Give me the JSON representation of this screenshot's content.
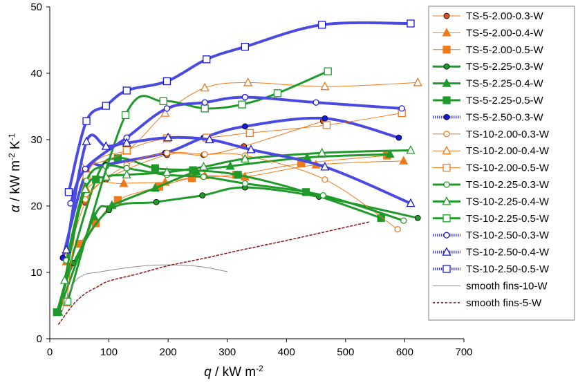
{
  "chart_data": {
    "type": "line",
    "xlabel_symbol": "q",
    "xlabel_unit": " / kW m",
    "xlabel_exp": "-2",
    "ylabel_symbol": "α",
    "ylabel_unit": " / kW m",
    "ylabel_exp1": "-2",
    "ylabel_k": " K",
    "ylabel_exp2": "-1",
    "xlim": [
      0,
      700
    ],
    "ylim": [
      0,
      50
    ],
    "xticks": [
      "0",
      "100",
      "200",
      "300",
      "400",
      "500",
      "600",
      "700"
    ],
    "yticks": [
      "0",
      "10",
      "20",
      "30",
      "40",
      "50"
    ],
    "grid": false,
    "legend_position": "right",
    "series": [
      {
        "name": "TS-5-2.00-0.3-W",
        "color": "#d9531e",
        "marker": "circle",
        "filled": true,
        "line": "thin-orange",
        "x": [
          28,
          60,
          95,
          198,
          260,
          328,
          462
        ],
        "y": [
          11.8,
          20.5,
          24,
          27.7,
          27.7,
          29,
          32.8
        ]
      },
      {
        "name": "TS-5-2.00-0.4-W",
        "color": "#f07a1a",
        "marker": "triangle",
        "filled": true,
        "line": "thin-orange",
        "x": [
          28,
          62,
          125,
          195,
          262,
          330,
          450,
          598
        ],
        "y": [
          11.6,
          22.5,
          23.4,
          23.6,
          24.6,
          24.4,
          26.2,
          26.8
        ]
      },
      {
        "name": "TS-5-2.00-0.5-W",
        "color": "#f07a1a",
        "marker": "square",
        "filled": true,
        "line": "thin-orange",
        "x": [
          50,
          78,
          115,
          185,
          240,
          315,
          425,
          570
        ],
        "y": [
          14.3,
          17.4,
          20.9,
          22.9,
          24.2,
          24.7,
          26.4,
          27.6
        ]
      },
      {
        "name": "TS-5-2.25-0.3-W",
        "color": "#1f9a2a",
        "marker": "circle",
        "filled": true,
        "line": "thick-green",
        "x": [
          15,
          40,
          100,
          180,
          258,
          330,
          455,
          622
        ],
        "y": [
          4.1,
          11.4,
          19.4,
          20.6,
          21.6,
          22.8,
          21.4,
          18.2
        ]
      },
      {
        "name": "TS-5-2.25-0.4-W",
        "color": "#1f9a2a",
        "marker": "triangle",
        "filled": true,
        "line": "thick-green",
        "x": [
          15,
          75,
          105,
          178,
          248,
          305,
          435,
          575
        ],
        "y": [
          4.0,
          18.4,
          20.1,
          22.7,
          25.2,
          26.0,
          27.3,
          27.8
        ]
      },
      {
        "name": "TS-5-2.25-0.5-W",
        "color": "#1f9a2a",
        "marker": "square",
        "filled": true,
        "line": "thick-green",
        "x": [
          12,
          78,
          115,
          178,
          242,
          318,
          433,
          560
        ],
        "y": [
          4.0,
          24.0,
          27.2,
          25.7,
          25.4,
          24.7,
          22.1,
          18.2
        ]
      },
      {
        "name": "TS-5-2.50-0.3-W",
        "color": "#1a1ad6",
        "marker": "circle",
        "filled": true,
        "line": "dotted-blue",
        "x": [
          22,
          62,
          95,
          195,
          260,
          330,
          465,
          590
        ],
        "y": [
          12.2,
          25.2,
          26.2,
          28.0,
          30.3,
          32.0,
          33.2,
          30.3
        ]
      },
      {
        "name": "TS-10-2.00-0.3-W",
        "color": "#f07a1a",
        "marker": "circle",
        "filled": false,
        "line": "thin-orange",
        "x": [
          30,
          60,
          130,
          198,
          262,
          330,
          465,
          588
        ],
        "y": [
          13.0,
          21.0,
          26.2,
          28.0,
          27.8,
          27.6,
          24.0,
          16.5
        ]
      },
      {
        "name": "TS-10-2.00-0.4-W",
        "color": "#f07a1a",
        "marker": "triangle",
        "filled": false,
        "line": "thin-orange",
        "x": [
          55,
          130,
          195,
          262,
          335,
          465,
          622
        ],
        "y": [
          25.8,
          28.3,
          34.0,
          37.8,
          38.6,
          38.0,
          38.6
        ]
      },
      {
        "name": "TS-10-2.00-0.5-W",
        "color": "#f07a1a",
        "marker": "square",
        "filled": false,
        "line": "thin-orange",
        "x": [
          28,
          62,
          130,
          198,
          265,
          338,
          468,
          595
        ],
        "y": [
          5.5,
          24.6,
          28.4,
          30.2,
          30.3,
          31.0,
          32.2,
          34.0
        ]
      },
      {
        "name": "TS-10-2.25-0.3-W",
        "color": "#1f9a2a",
        "marker": "circle",
        "filled": false,
        "line": "thick-green",
        "x": [
          28,
          62,
          95,
          130,
          198,
          260,
          330,
          462,
          598
        ],
        "y": [
          11.8,
          23.8,
          26.0,
          25.7,
          24.7,
          24.4,
          23.4,
          21.6,
          17.8
        ]
      },
      {
        "name": "TS-10-2.25-0.4-W",
        "color": "#1f9a2a",
        "marker": "triangle",
        "filled": false,
        "line": "thick-green",
        "x": [
          25,
          60,
          95,
          130,
          198,
          260,
          330,
          460,
          610
        ],
        "y": [
          8.8,
          22.5,
          24.4,
          24.7,
          25.1,
          25.9,
          27.1,
          28.0,
          28.4
        ]
      },
      {
        "name": "TS-10-2.25-0.5-W",
        "color": "#1f9a2a",
        "marker": "square",
        "filled": false,
        "line": "thick-green",
        "x": [
          30,
          128,
          192,
          262,
          325,
          385,
          470
        ],
        "y": [
          5.6,
          33.7,
          35.8,
          34.7,
          35.3,
          37.0,
          40.3
        ]
      },
      {
        "name": "TS-10-2.50-0.3-W",
        "color": "#1a1ad6",
        "marker": "circle",
        "filled": false,
        "line": "dotted-blue",
        "x": [
          35,
          60,
          130,
          198,
          262,
          330,
          450,
          595
        ],
        "y": [
          20.4,
          25.6,
          30.3,
          34.7,
          35.6,
          36.4,
          35.6,
          34.7
        ]
      },
      {
        "name": "TS-10-2.50-0.4-W",
        "color": "#1a1ad6",
        "marker": "triangle",
        "filled": false,
        "line": "dotted-blue",
        "x": [
          28,
          62,
          95,
          130,
          200,
          270,
          340,
          465,
          610
        ],
        "y": [
          13.4,
          29.7,
          29.0,
          29.5,
          30.3,
          30.0,
          28.5,
          25.9,
          20.4
        ]
      },
      {
        "name": "TS-10-2.50-0.5-W",
        "color": "#1a1ad6",
        "marker": "square",
        "filled": false,
        "line": "dotted-blue",
        "x": [
          32,
          62,
          95,
          130,
          198,
          265,
          330,
          460,
          610
        ],
        "y": [
          22.1,
          32.8,
          35.1,
          37.4,
          38.8,
          42.1,
          44.0,
          47.3,
          47.5
        ]
      },
      {
        "name": "smooth fins-10-W",
        "color": "#8c8c8c",
        "marker": "none",
        "filled": false,
        "line": "thin-gray",
        "x": [
          20,
          40,
          60,
          80,
          100,
          140,
          180,
          220,
          260,
          300
        ],
        "y": [
          4.0,
          8.3,
          9.7,
          10.0,
          10.3,
          10.8,
          11.1,
          11.1,
          10.8,
          10.1
        ]
      },
      {
        "name": "smooth fins-5-W",
        "color": "#8b2020",
        "marker": "none",
        "filled": false,
        "line": "dotted-brown",
        "x": [
          15,
          40,
          60,
          80,
          100,
          150,
          200,
          260,
          320,
          400,
          460,
          540
        ],
        "y": [
          2.2,
          5.2,
          6.8,
          7.8,
          8.7,
          9.8,
          11.0,
          12.1,
          13.3,
          14.8,
          16.0,
          17.6
        ]
      }
    ]
  }
}
